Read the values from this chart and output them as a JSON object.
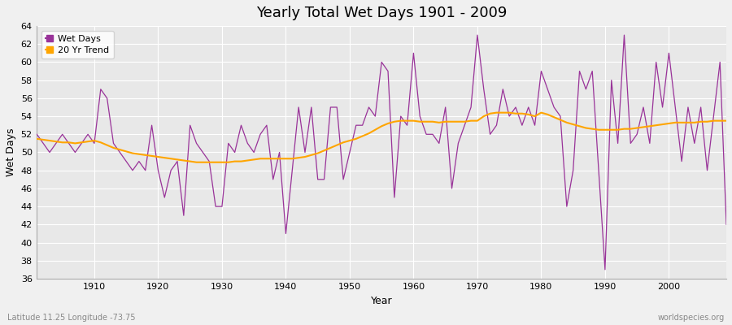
{
  "title": "Yearly Total Wet Days 1901 - 2009",
  "xlabel": "Year",
  "ylabel": "Wet Days",
  "subtitle_left": "Latitude 11.25 Longitude -73.75",
  "subtitle_right": "worldspecies.org",
  "ylim": [
    36,
    64
  ],
  "yticks": [
    36,
    38,
    40,
    42,
    44,
    46,
    48,
    50,
    52,
    54,
    56,
    58,
    60,
    62,
    64
  ],
  "xlim": [
    1901,
    2009
  ],
  "xticks": [
    1910,
    1920,
    1930,
    1940,
    1950,
    1960,
    1970,
    1980,
    1990,
    2000
  ],
  "wet_days_color": "#993399",
  "trend_color": "#FFA500",
  "bg_color": "#F0F0F0",
  "plot_bg_color": "#E8E8E8",
  "grid_color": "#FFFFFF",
  "legend_labels": [
    "Wet Days",
    "20 Yr Trend"
  ],
  "years": [
    1901,
    1902,
    1903,
    1904,
    1905,
    1906,
    1907,
    1908,
    1909,
    1910,
    1911,
    1912,
    1913,
    1914,
    1915,
    1916,
    1917,
    1918,
    1919,
    1920,
    1921,
    1922,
    1923,
    1924,
    1925,
    1926,
    1927,
    1928,
    1929,
    1930,
    1931,
    1932,
    1933,
    1934,
    1935,
    1936,
    1937,
    1938,
    1939,
    1940,
    1941,
    1942,
    1943,
    1944,
    1945,
    1946,
    1947,
    1948,
    1949,
    1950,
    1951,
    1952,
    1953,
    1954,
    1955,
    1956,
    1957,
    1958,
    1959,
    1960,
    1961,
    1962,
    1963,
    1964,
    1965,
    1966,
    1967,
    1968,
    1969,
    1970,
    1971,
    1972,
    1973,
    1974,
    1975,
    1976,
    1977,
    1978,
    1979,
    1980,
    1981,
    1982,
    1983,
    1984,
    1985,
    1986,
    1987,
    1988,
    1989,
    1990,
    1991,
    1992,
    1993,
    1994,
    1995,
    1996,
    1997,
    1998,
    1999,
    2000,
    2001,
    2002,
    2003,
    2004,
    2005,
    2006,
    2007,
    2008,
    2009
  ],
  "wet_days": [
    52,
    51,
    50,
    51,
    52,
    51,
    50,
    51,
    52,
    51,
    57,
    56,
    51,
    50,
    49,
    48,
    49,
    48,
    53,
    48,
    45,
    48,
    49,
    43,
    53,
    51,
    50,
    49,
    44,
    44,
    51,
    50,
    53,
    51,
    50,
    52,
    53,
    47,
    50,
    41,
    48,
    55,
    50,
    55,
    47,
    47,
    55,
    55,
    47,
    50,
    53,
    53,
    55,
    54,
    60,
    59,
    45,
    54,
    53,
    61,
    54,
    52,
    52,
    51,
    55,
    46,
    51,
    53,
    55,
    63,
    57,
    52,
    53,
    57,
    54,
    55,
    53,
    55,
    53,
    59,
    57,
    55,
    54,
    44,
    48,
    59,
    57,
    59,
    48,
    37,
    58,
    51,
    63,
    51,
    52,
    55,
    51,
    60,
    55,
    61,
    55,
    49,
    55,
    51,
    55,
    48,
    54,
    60,
    42
  ],
  "trend": [
    51.5,
    51.4,
    51.3,
    51.2,
    51.1,
    51.1,
    51.0,
    51.1,
    51.2,
    51.3,
    51.1,
    50.8,
    50.5,
    50.3,
    50.1,
    49.9,
    49.8,
    49.7,
    49.6,
    49.5,
    49.4,
    49.3,
    49.2,
    49.1,
    49.0,
    48.9,
    48.9,
    48.9,
    48.9,
    48.9,
    48.9,
    49.0,
    49.0,
    49.1,
    49.2,
    49.3,
    49.3,
    49.3,
    49.3,
    49.3,
    49.3,
    49.4,
    49.5,
    49.7,
    49.9,
    50.2,
    50.5,
    50.8,
    51.1,
    51.3,
    51.5,
    51.8,
    52.1,
    52.5,
    52.9,
    53.2,
    53.4,
    53.5,
    53.5,
    53.5,
    53.4,
    53.4,
    53.4,
    53.3,
    53.4,
    53.4,
    53.4,
    53.4,
    53.5,
    53.5,
    54.0,
    54.3,
    54.4,
    54.4,
    54.4,
    54.3,
    54.3,
    54.2,
    54.0,
    54.4,
    54.2,
    53.9,
    53.6,
    53.3,
    53.1,
    52.9,
    52.7,
    52.6,
    52.5,
    52.5,
    52.5,
    52.5,
    52.6,
    52.6,
    52.7,
    52.8,
    52.9,
    53.0,
    53.1,
    53.2,
    53.3,
    53.3,
    53.3,
    53.3,
    53.4,
    53.4,
    53.5,
    53.5,
    53.5
  ]
}
